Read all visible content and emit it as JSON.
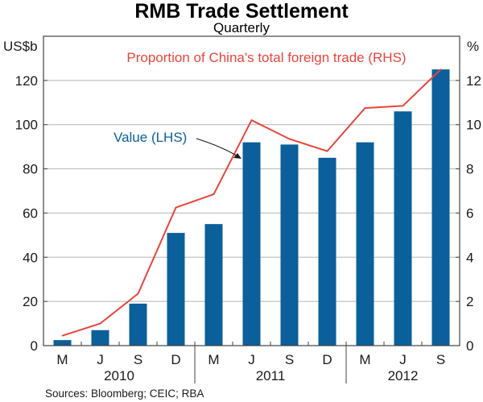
{
  "chart_data": {
    "type": "bar",
    "title": "RMB Trade Settlement",
    "subtitle": "Quarterly",
    "left_unit": "US$b",
    "right_unit": "%",
    "categories": [
      "M",
      "J",
      "S",
      "D",
      "M",
      "J",
      "S",
      "D",
      "M",
      "J",
      "S"
    ],
    "years": [
      {
        "label": "2010",
        "from": 0,
        "to": 3
      },
      {
        "label": "2011",
        "from": 4,
        "to": 7
      },
      {
        "label": "2012",
        "from": 8,
        "to": 10
      }
    ],
    "series": [
      {
        "name": "Value (LHS)",
        "axis": "left",
        "render": "bar",
        "color": "#0b5f9a",
        "values": [
          2.5,
          7,
          19,
          51,
          55,
          92,
          91,
          85,
          92,
          106,
          125
        ]
      },
      {
        "name": "Proportion of China's total foreign trade (RHS)",
        "axis": "right",
        "render": "line",
        "color": "#e8453c",
        "values": [
          0.45,
          1.0,
          2.35,
          6.25,
          6.85,
          10.2,
          9.35,
          8.8,
          10.75,
          10.85,
          12.5
        ]
      }
    ],
    "ylim_left": [
      0,
      140
    ],
    "yticks_left": [
      0,
      20,
      40,
      60,
      80,
      100,
      120
    ],
    "ylim_right": [
      0,
      14
    ],
    "yticks_right": [
      0,
      2,
      4,
      6,
      8,
      10,
      12
    ],
    "grid": true,
    "source": "Sources: Bloomberg; CEIC; RBA"
  }
}
